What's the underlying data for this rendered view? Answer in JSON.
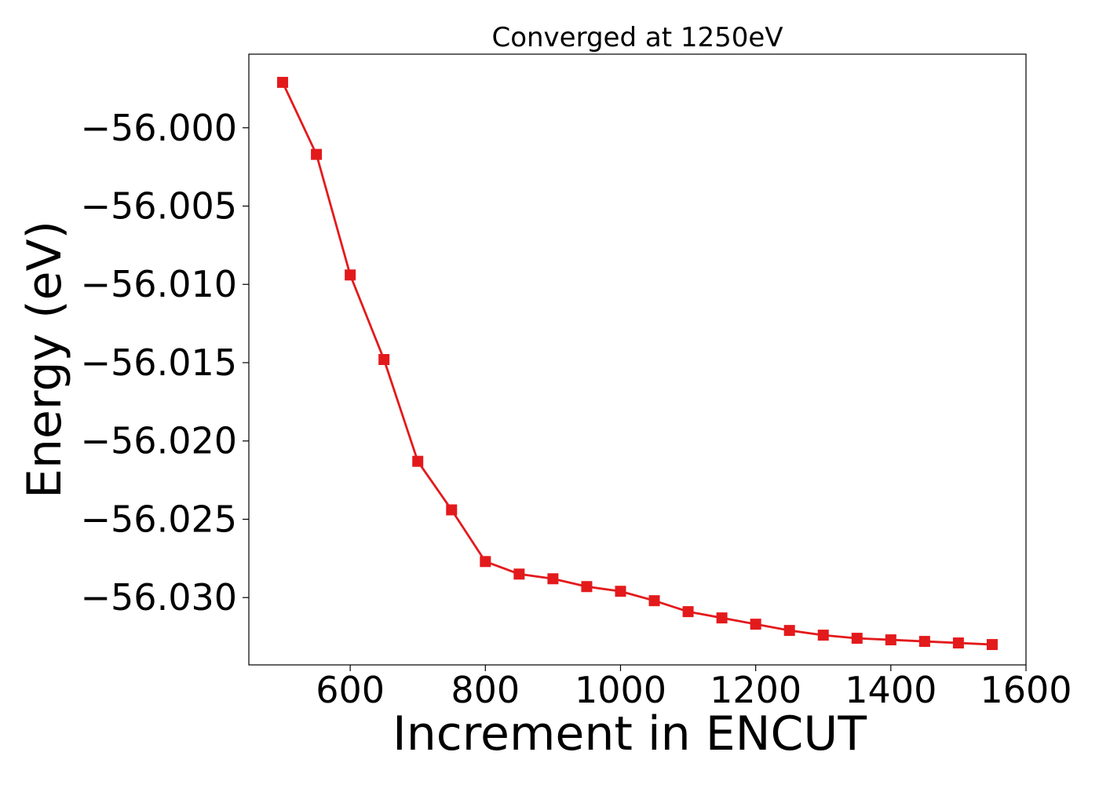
{
  "chart_data": {
    "type": "line",
    "title": "Converged at 1250eV",
    "xlabel": "Increment in ENCUT",
    "ylabel": "Energy (eV)",
    "xlim": [
      450,
      1600
    ],
    "ylim": [
      -56.0343,
      -55.9953
    ],
    "x_ticks": [
      600,
      800,
      1000,
      1200,
      1400,
      1600
    ],
    "y_ticks": [
      -56.0,
      -56.005,
      -56.01,
      -56.015,
      -56.02,
      -56.025,
      -56.03
    ],
    "x_tick_labels": [
      "600",
      "800",
      "1000",
      "1200",
      "1400",
      "1600"
    ],
    "y_tick_labels": [
      "−56.000",
      "−56.005",
      "−56.010",
      "−56.015",
      "−56.020",
      "−56.025",
      "−56.030"
    ],
    "grid": false,
    "legend": "none",
    "series": [
      {
        "color": "#e31a1c",
        "marker": "square",
        "x": [
          500,
          550,
          600,
          650,
          700,
          750,
          800,
          850,
          900,
          950,
          1000,
          1050,
          1100,
          1150,
          1200,
          1250,
          1300,
          1350,
          1400,
          1450,
          1500,
          1550
        ],
        "y": [
          -55.9971,
          -56.0017,
          -56.0094,
          -56.0148,
          -56.0213,
          -56.0244,
          -56.0277,
          -56.0285,
          -56.0288,
          -56.0293,
          -56.0296,
          -56.0302,
          -56.0309,
          -56.0313,
          -56.0317,
          -56.0321,
          -56.0324,
          -56.0326,
          -56.0327,
          -56.0328,
          -56.0329,
          -56.033
        ]
      }
    ]
  }
}
